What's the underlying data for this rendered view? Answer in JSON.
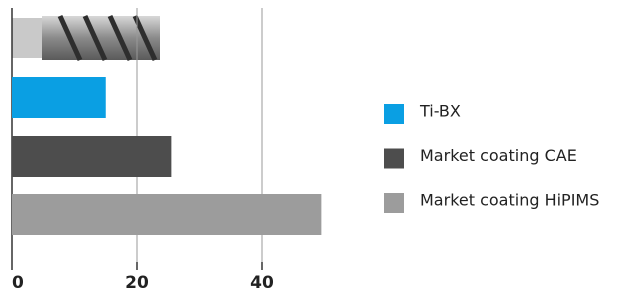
{
  "chart_data": {
    "type": "bar",
    "orientation": "horizontal",
    "categories": [
      "Ti-BX",
      "Market coating CAE",
      "Market coating HiPIMS"
    ],
    "values": [
      15,
      25.5,
      49.5
    ],
    "colors": [
      "#0a9fe3",
      "#4d4d4d",
      "#9c9c9c"
    ],
    "xlim": [
      0,
      50
    ],
    "xticks": [
      0,
      20,
      40
    ],
    "grid": true
  }
}
